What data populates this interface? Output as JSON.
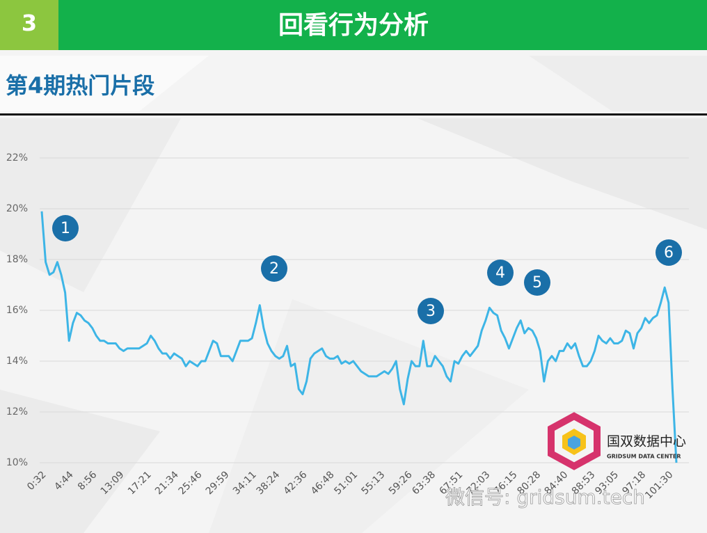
{
  "header": {
    "number": "3",
    "title": "回看行为分析"
  },
  "subtitle": "第4期热门片段",
  "logo": {
    "name": "国双数据中心",
    "tagline": "GRIDSUM DATA CENTER"
  },
  "watermark": "微信号: gridsum.tech",
  "chart_data": {
    "type": "line",
    "color": "#3db5e6",
    "grid": true,
    "ylim": [
      10,
      22
    ],
    "yticks": [
      {
        "value": 10,
        "label": "10%"
      },
      {
        "value": 12,
        "label": "12%"
      },
      {
        "value": 14,
        "label": "14%"
      },
      {
        "value": 16,
        "label": "16%"
      },
      {
        "value": 18,
        "label": "18%"
      },
      {
        "value": 20,
        "label": "20%"
      },
      {
        "value": 22,
        "label": "22%"
      }
    ],
    "categories": [
      "0:32",
      null,
      null,
      null,
      null,
      null,
      null,
      "4:44",
      null,
      null,
      null,
      null,
      null,
      "8:56",
      null,
      null,
      null,
      null,
      null,
      null,
      "13:09",
      null,
      null,
      null,
      null,
      null,
      null,
      "17:21",
      null,
      null,
      null,
      null,
      null,
      null,
      "21:34",
      null,
      null,
      null,
      null,
      null,
      "25:46",
      null,
      null,
      null,
      null,
      null,
      null,
      "29:59",
      null,
      null,
      null,
      null,
      null,
      null,
      "34:11",
      null,
      null,
      null,
      null,
      null,
      "38:24",
      null,
      null,
      null,
      null,
      null,
      null,
      "42:36",
      null,
      null,
      null,
      null,
      null,
      null,
      "46:48",
      null,
      null,
      null,
      null,
      null,
      "51:01",
      null,
      null,
      null,
      null,
      null,
      null,
      "55:13",
      null,
      null,
      null,
      null,
      null,
      null,
      "59:26",
      null,
      null,
      null,
      null,
      null,
      "63:38",
      null,
      null,
      null,
      null,
      null,
      null,
      "67:51",
      null,
      null,
      null,
      null,
      null,
      null,
      "72:03",
      null,
      null,
      null,
      null,
      null,
      null,
      "76:15",
      null,
      null,
      null,
      null,
      null,
      "80:28",
      null,
      null,
      null,
      null,
      null,
      null,
      "84:40",
      null,
      null,
      null,
      null,
      null,
      null,
      "88:53",
      null,
      null,
      null,
      null,
      null,
      "93:05",
      null,
      null,
      null,
      null,
      null,
      null,
      "97:18",
      null,
      null,
      null,
      null,
      null,
      null,
      "101:30",
      null,
      null
    ],
    "values": [
      19.9,
      17.9,
      17.4,
      17.5,
      17.9,
      17.4,
      16.7,
      14.8,
      15.5,
      15.9,
      15.8,
      15.6,
      15.5,
      15.3,
      15.0,
      14.8,
      14.8,
      14.7,
      14.7,
      14.7,
      14.5,
      14.4,
      14.5,
      14.5,
      14.5,
      14.5,
      14.6,
      14.7,
      15.0,
      14.8,
      14.5,
      14.3,
      14.3,
      14.1,
      14.3,
      14.2,
      14.1,
      13.8,
      14.0,
      13.9,
      13.8,
      14.0,
      14.0,
      14.4,
      14.8,
      14.7,
      14.2,
      14.2,
      14.2,
      14.0,
      14.4,
      14.8,
      14.8,
      14.8,
      14.9,
      15.5,
      16.2,
      15.3,
      14.7,
      14.4,
      14.2,
      14.1,
      14.2,
      14.6,
      13.8,
      13.9,
      12.9,
      12.7,
      13.2,
      14.1,
      14.3,
      14.4,
      14.5,
      14.2,
      14.1,
      14.1,
      14.2,
      13.9,
      14.0,
      13.9,
      14.0,
      13.8,
      13.6,
      13.5,
      13.4,
      13.4,
      13.4,
      13.5,
      13.6,
      13.5,
      13.7,
      14.0,
      12.9,
      12.3,
      13.3,
      14.0,
      13.8,
      13.8,
      14.8,
      13.8,
      13.8,
      14.2,
      14.0,
      13.8,
      13.4,
      13.2,
      14.0,
      13.9,
      14.2,
      14.4,
      14.2,
      14.4,
      14.6,
      15.2,
      15.6,
      16.1,
      15.9,
      15.8,
      15.2,
      14.9,
      14.5,
      14.9,
      15.3,
      15.6,
      15.1,
      15.3,
      15.2,
      14.9,
      14.4,
      13.2,
      14.0,
      14.2,
      14.0,
      14.4,
      14.4,
      14.7,
      14.5,
      14.7,
      14.2,
      13.8,
      13.8,
      14.0,
      14.4,
      15.0,
      14.8,
      14.7,
      14.9,
      14.7,
      14.7,
      14.8,
      15.2,
      15.1,
      14.5,
      15.1,
      15.3,
      15.7,
      15.5,
      15.7,
      15.8,
      16.3,
      16.9,
      16.3,
      12.9,
      10.0
    ],
    "annotations": [
      "1",
      "2",
      "3",
      "4",
      "5",
      "6"
    ]
  }
}
